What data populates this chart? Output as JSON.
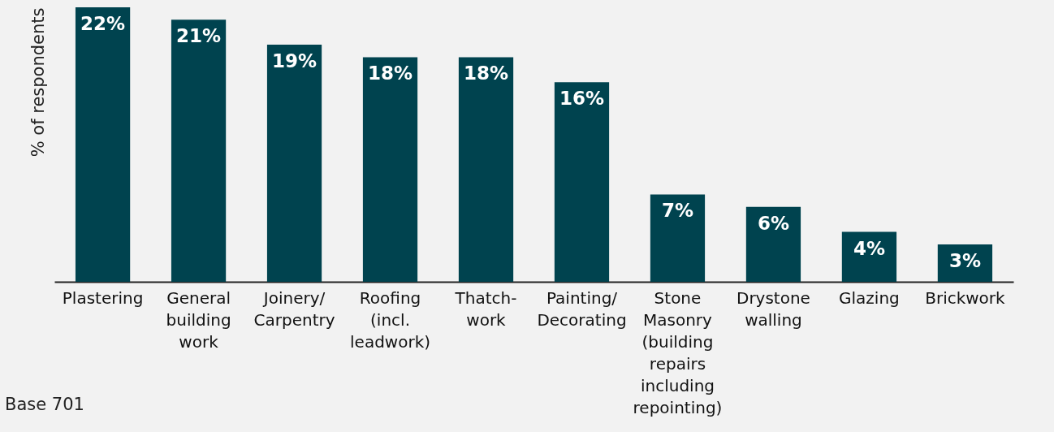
{
  "chart_data": {
    "type": "bar",
    "ylabel": "% of respondents",
    "categories": [
      "Plastering",
      "General building work",
      "Joinery/Carpentry",
      "Roofing (incl. leadwork)",
      "Thatch-work",
      "Painting/Decorating",
      "Stone Masonry (building repairs including repointing)",
      "Drystone walling",
      "Glazing",
      "Brickwork"
    ],
    "values": [
      22,
      21,
      19,
      18,
      18,
      16,
      7,
      6,
      4,
      3
    ],
    "value_labels": [
      "22%",
      "21%",
      "19%",
      "18%",
      "18%",
      "16%",
      "7%",
      "6%",
      "4%",
      "3%"
    ],
    "color": "#00434f",
    "ylim": [
      0,
      22
    ],
    "tick_labels": "x",
    "annotations": [
      "Base 701"
    ]
  }
}
